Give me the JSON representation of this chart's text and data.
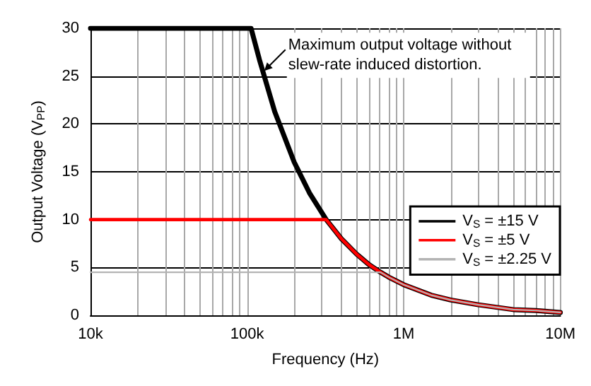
{
  "chart_data": {
    "type": "line",
    "xlabel": "Frequency (Hz)",
    "ylabel": "Output Voltage (V$_{PP}$)",
    "log": "x",
    "xlim": [
      10000,
      10000000
    ],
    "ylim": [
      0,
      30
    ],
    "xticks": [
      {
        "value": 10000,
        "label": "10k"
      },
      {
        "value": 20000,
        "label": null
      },
      {
        "value": 30000,
        "label": null
      },
      {
        "value": 40000,
        "label": null
      },
      {
        "value": 50000,
        "label": null
      },
      {
        "value": 60000,
        "label": null
      },
      {
        "value": 70000,
        "label": null
      },
      {
        "value": 80000,
        "label": null
      },
      {
        "value": 90000,
        "label": null
      },
      {
        "value": 100000,
        "label": "100k"
      },
      {
        "value": 200000,
        "label": null
      },
      {
        "value": 300000,
        "label": null
      },
      {
        "value": 400000,
        "label": null
      },
      {
        "value": 500000,
        "label": null
      },
      {
        "value": 600000,
        "label": null
      },
      {
        "value": 700000,
        "label": null
      },
      {
        "value": 800000,
        "label": null
      },
      {
        "value": 900000,
        "label": null
      },
      {
        "value": 1000000,
        "label": "1M"
      },
      {
        "value": 2000000,
        "label": null
      },
      {
        "value": 3000000,
        "label": null
      },
      {
        "value": 4000000,
        "label": null
      },
      {
        "value": 5000000,
        "label": null
      },
      {
        "value": 6000000,
        "label": null
      },
      {
        "value": 7000000,
        "label": null
      },
      {
        "value": 8000000,
        "label": null
      },
      {
        "value": 9000000,
        "label": null
      },
      {
        "value": 10000000,
        "label": "10M"
      }
    ],
    "yticks": [
      0,
      5,
      10,
      15,
      20,
      25,
      30
    ],
    "grid": true,
    "legend": "right",
    "marker": "none",
    "line_style": "solid",
    "series": [
      {
        "name": "V$_{S}$ = ±15 V",
        "color": "#000000",
        "x": [
          10000,
          106000,
          120000,
          150000,
          200000,
          250000,
          320000,
          400000,
          500000,
          600000,
          711000,
          800000,
          1000000,
          1500000,
          2000000,
          3000000,
          5000000,
          7000000,
          10000000
        ],
        "values": [
          30,
          30,
          26.7,
          21.3,
          16,
          12.8,
          10,
          8,
          6.4,
          5.3,
          4.5,
          4,
          3.2,
          2.1,
          1.6,
          1.1,
          0.6,
          0.5,
          0.3
        ]
      },
      {
        "name": "V$_{S}$ = ±5 V",
        "color": "#ff0000",
        "x": [
          10000,
          320000,
          400000,
          500000,
          600000,
          711000,
          800000,
          1000000,
          1500000,
          2000000,
          3000000,
          5000000,
          7000000,
          10000000
        ],
        "values": [
          10,
          10,
          8,
          6.4,
          5.3,
          4.5,
          4,
          3.2,
          2.1,
          1.6,
          1.1,
          0.6,
          0.5,
          0.3
        ]
      },
      {
        "name": "V$_{S}$ = ±2.25 V",
        "color": "#b4b4b4",
        "x": [
          10000,
          711000,
          800000,
          1000000,
          1500000,
          2000000,
          3000000,
          5000000,
          7000000,
          10000000
        ],
        "values": [
          4.5,
          4.5,
          4,
          3.2,
          2.1,
          1.6,
          1.1,
          0.6,
          0.5,
          0.3
        ]
      }
    ],
    "annotations": [
      {
        "text": "Maximum output voltage without\nslew-rate induced distortion.",
        "x": 126000,
        "y": 25.4
      }
    ]
  }
}
